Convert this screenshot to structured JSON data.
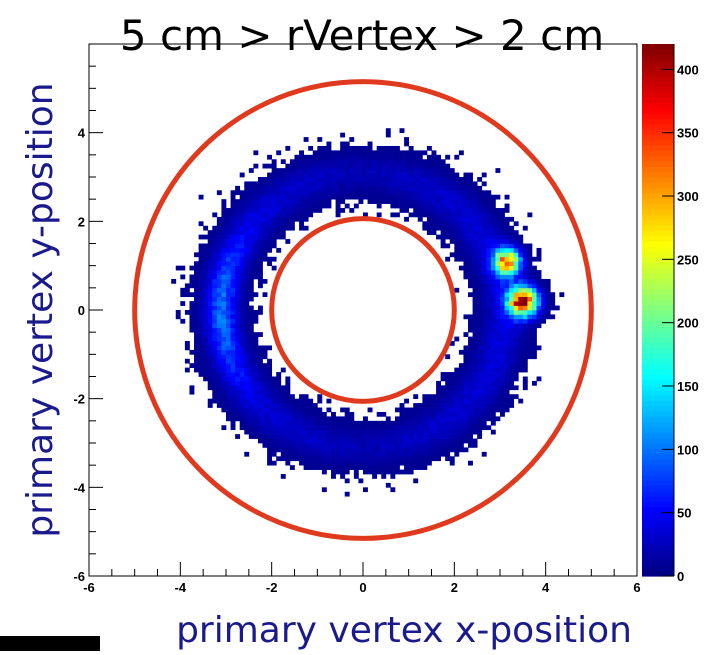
{
  "chart_data": {
    "type": "heatmap",
    "title": "5 cm > rVertex > 2 cm",
    "xlabel": "primary vertex x-position",
    "ylabel": "primary vertex y-position",
    "xlim": [
      -6,
      6
    ],
    "ylim": [
      -6,
      6
    ],
    "zlim": [
      0,
      420
    ],
    "x_ticks": [
      -6,
      -4,
      -2,
      0,
      2,
      4,
      6
    ],
    "y_ticks": [
      -6,
      -4,
      -2,
      0,
      2,
      4
    ],
    "z_ticks": [
      0,
      50,
      100,
      150,
      200,
      250,
      300,
      350,
      400
    ],
    "x_tick_labels": [
      "-6",
      "-4",
      "-2",
      "0",
      "2",
      "4",
      "6"
    ],
    "y_tick_labels": [
      "-6",
      "-4",
      "-2",
      "0",
      "2",
      "4"
    ],
    "z_tick_labels": [
      "0",
      "50",
      "100",
      "150",
      "200",
      "250",
      "300",
      "350",
      "400"
    ],
    "colorscale": [
      "#00007f",
      "#0000ff",
      "#0080ff",
      "#00ffff",
      "#80ff80",
      "#ffff00",
      "#ff8000",
      "#ff0000",
      "#7f0000"
    ],
    "circles": [
      {
        "radius": 2,
        "color": "#e03a1e"
      },
      {
        "radius": 5,
        "color": "#e03a1e"
      }
    ],
    "hotspot": {
      "x": 3.5,
      "y": 0.2,
      "peak": 400
    },
    "ring_radius": 3.1,
    "grid": false
  }
}
